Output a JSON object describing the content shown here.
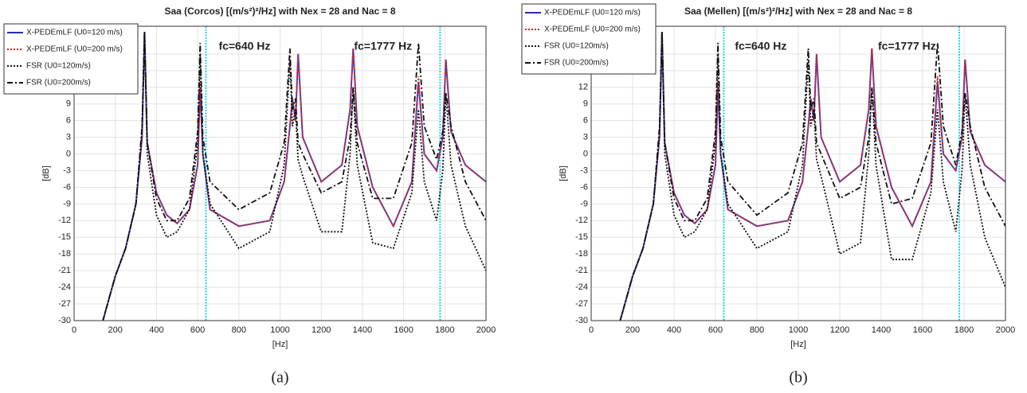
{
  "chart_data": [
    {
      "type": "line",
      "title": "Saa (Corcos) [(m/s²)²/Hz] with Nex = 28 and Nac = 8",
      "x_label": "[Hz]",
      "y_label": "[dB]",
      "caption": "(a)",
      "xlim": [
        0,
        2000
      ],
      "ylim": [
        -30,
        23
      ],
      "xticks": [
        0,
        200,
        400,
        600,
        800,
        1000,
        1200,
        1400,
        1600,
        1800,
        2000
      ],
      "yticks": [
        -30,
        -27,
        -24,
        -21,
        -18,
        -15,
        -12,
        -9,
        -6,
        -3,
        0,
        3,
        6,
        9,
        12,
        15,
        18
      ],
      "grid": true,
      "legend": "upper left",
      "annotations": [
        {
          "x": 640,
          "label": "fc=640 Hz",
          "color": "#22d3e0"
        },
        {
          "x": 1777,
          "label": "fc=1777 Hz",
          "color": "#22d3e0"
        }
      ],
      "x": [
        140,
        170,
        200,
        250,
        300,
        330,
        342,
        355,
        400,
        450,
        500,
        560,
        600,
        612,
        625,
        660,
        800,
        950,
        1020,
        1048,
        1060,
        1075,
        1088,
        1110,
        1200,
        1300,
        1340,
        1355,
        1375,
        1450,
        1550,
        1640,
        1672,
        1700,
        1760,
        1790,
        1805,
        1830,
        1900,
        2000
      ],
      "series": [
        {
          "name": "X-PEDEmLF (U0=120 m/s)",
          "color": "#2a2ab8",
          "dash": "solid",
          "values": [
            -30,
            -26,
            -22,
            -17,
            -9,
            3,
            22,
            2,
            -7,
            -11,
            -12.5,
            -10,
            -2,
            12,
            0,
            -10,
            -13,
            -12,
            -5,
            5,
            10,
            6,
            18,
            3,
            -5,
            -2,
            8,
            19,
            5,
            -6,
            -13,
            -5,
            13,
            0,
            -3,
            3,
            17,
            4,
            -2,
            -5
          ]
        },
        {
          "name": "X-PEDEmLF (U0=200 m/s)",
          "color": "#d62020",
          "dash": "dotted",
          "values": [
            -30,
            -26,
            -22,
            -17,
            -9,
            3,
            22,
            2,
            -7,
            -11,
            -12.5,
            -10,
            -2,
            13,
            0,
            -10,
            -13,
            -12,
            -5,
            5,
            10,
            6,
            18,
            3,
            -5,
            -2,
            8,
            19,
            5,
            -6,
            -13,
            -5,
            14,
            0,
            -3,
            3,
            17,
            4,
            -2,
            -5
          ]
        },
        {
          "name": "FSR (U0=120m/s)",
          "color": "#111111",
          "dash": "dotted",
          "values": [
            -30,
            -26,
            -22,
            -17,
            -9,
            4,
            22,
            0,
            -11,
            -15,
            -14,
            -10,
            2,
            18,
            0,
            -9,
            -17,
            -14,
            -2,
            17,
            5,
            8,
            -1,
            -4,
            -14,
            -14,
            0,
            12,
            -2,
            -16,
            -17,
            -7,
            8,
            -5,
            -12,
            -3,
            11,
            -2,
            -13,
            -21
          ]
        },
        {
          "name": "FSR (U0=200m/s)",
          "color": "#111111",
          "dash": "dashdot",
          "values": [
            -30,
            -26,
            -22,
            -17,
            -9,
            5,
            22,
            2,
            -8,
            -12,
            -12,
            -8,
            4,
            20,
            3,
            -5,
            -10,
            -7,
            2,
            19,
            8,
            10,
            2,
            0,
            -7,
            -5,
            3,
            12,
            2,
            -8,
            -8,
            2,
            20,
            5,
            -1,
            4,
            11,
            5,
            -5,
            -12
          ]
        }
      ]
    },
    {
      "type": "line",
      "title": "Saa (Mellen) [(m/s²)²/Hz] with Nex = 28 and Nac = 8",
      "x_label": "[Hz]",
      "y_label": "[dB]",
      "caption": "(b)",
      "xlim": [
        0,
        2000
      ],
      "ylim": [
        -30,
        23
      ],
      "xticks": [
        0,
        200,
        400,
        600,
        800,
        1000,
        1200,
        1400,
        1600,
        1800,
        2000
      ],
      "yticks": [
        -30,
        -27,
        -24,
        -21,
        -18,
        -15,
        -12,
        -9,
        -6,
        -3,
        0,
        3,
        6,
        9,
        12,
        15,
        18
      ],
      "grid": true,
      "legend": "upper left",
      "annotations": [
        {
          "x": 640,
          "label": "fc=640 Hz",
          "color": "#22d3e0"
        },
        {
          "x": 1777,
          "label": "fc=1777 Hz",
          "color": "#22d3e0"
        }
      ],
      "x": [
        140,
        170,
        200,
        250,
        300,
        330,
        342,
        355,
        400,
        450,
        500,
        560,
        600,
        612,
        625,
        660,
        800,
        950,
        1020,
        1048,
        1060,
        1075,
        1088,
        1110,
        1200,
        1300,
        1340,
        1355,
        1375,
        1450,
        1550,
        1640,
        1672,
        1700,
        1760,
        1790,
        1805,
        1830,
        1900,
        2000
      ],
      "series": [
        {
          "name": "X-PEDEmLF (U0=120 m/s)",
          "color": "#2a2ab8",
          "dash": "solid",
          "values": [
            -30,
            -26,
            -22,
            -17,
            -9,
            3,
            22,
            2,
            -7,
            -11,
            -12.5,
            -10,
            -2,
            12,
            0,
            -10,
            -13,
            -12,
            -5,
            5,
            10,
            6,
            18,
            3,
            -5,
            -2,
            8,
            19,
            5,
            -6,
            -13,
            -5,
            13,
            0,
            -3,
            3,
            17,
            4,
            -2,
            -5
          ]
        },
        {
          "name": "X-PEDEmLF (U0=200 m/s)",
          "color": "#d62020",
          "dash": "dotted",
          "values": [
            -30,
            -26,
            -22,
            -17,
            -9,
            3,
            22,
            2,
            -7,
            -11,
            -12.5,
            -10,
            -2,
            13,
            0,
            -10,
            -13,
            -12,
            -5,
            5,
            10,
            6,
            18,
            3,
            -5,
            -2,
            8,
            19,
            5,
            -6,
            -13,
            -5,
            14,
            0,
            -3,
            3,
            17,
            4,
            -2,
            -5
          ]
        },
        {
          "name": "FSR (U0=120m/s)",
          "color": "#111111",
          "dash": "dotted",
          "values": [
            -30,
            -26,
            -22,
            -17,
            -9,
            4,
            22,
            0,
            -11,
            -15,
            -14,
            -10,
            2,
            18,
            0,
            -9,
            -17,
            -14,
            -2,
            17,
            5,
            8,
            -1,
            -4,
            -18,
            -16,
            0,
            12,
            -2,
            -19,
            -19,
            -7,
            8,
            -5,
            -14,
            -3,
            11,
            -2,
            -15,
            -24
          ]
        },
        {
          "name": "FSR (U0=200m/s)",
          "color": "#111111",
          "dash": "dashdot",
          "values": [
            -30,
            -26,
            -22,
            -17,
            -9,
            5,
            22,
            2,
            -8,
            -12,
            -12,
            -8,
            4,
            20,
            3,
            -5,
            -11,
            -7,
            2,
            19,
            8,
            10,
            2,
            0,
            -8,
            -6,
            3,
            12,
            2,
            -9,
            -8,
            2,
            20,
            5,
            -2,
            4,
            11,
            5,
            -6,
            -13
          ]
        }
      ]
    }
  ]
}
